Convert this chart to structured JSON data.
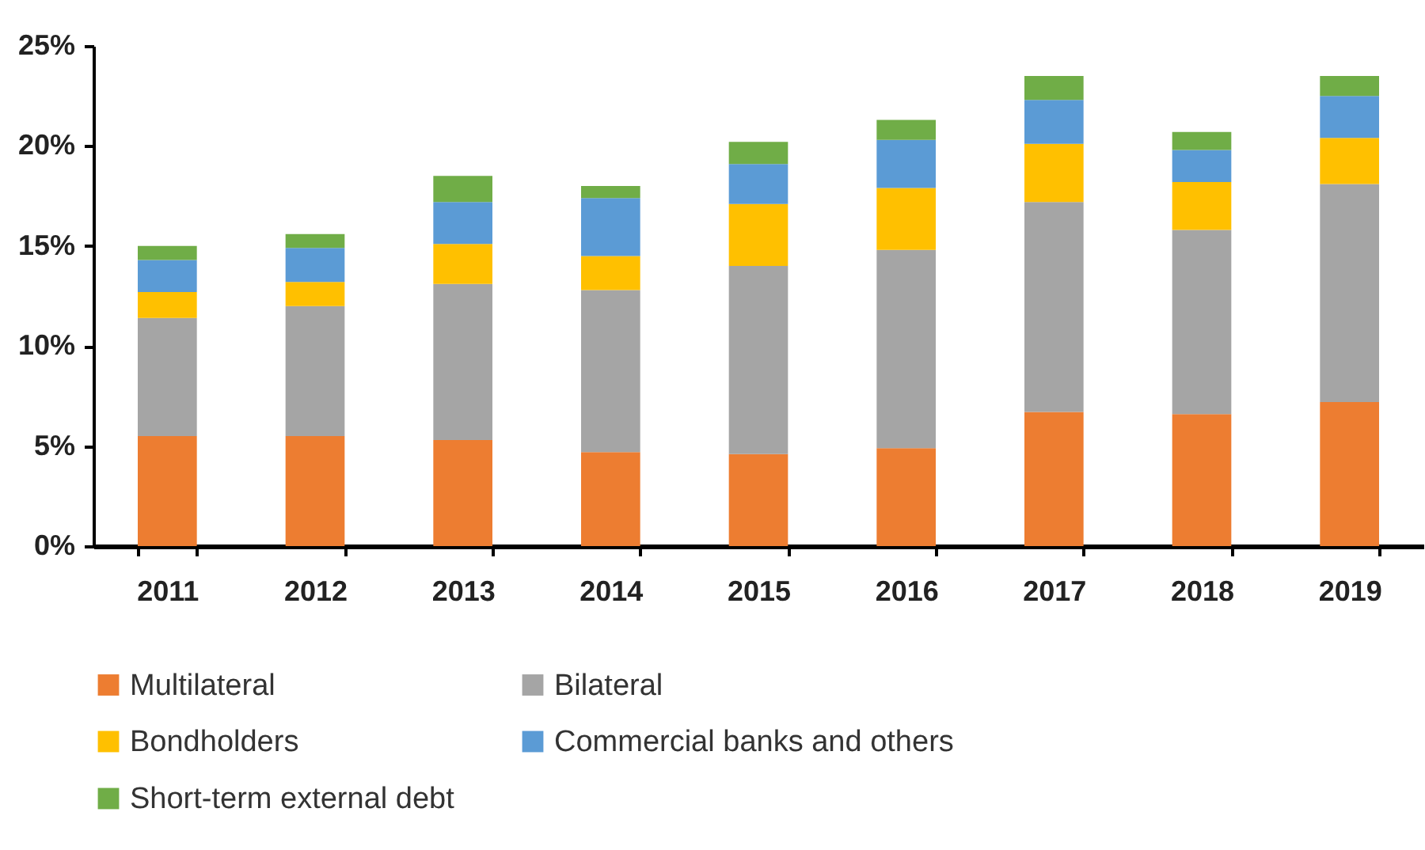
{
  "chart_data": {
    "type": "bar",
    "stacked": true,
    "categories": [
      "2011",
      "2012",
      "2013",
      "2014",
      "2015",
      "2016",
      "2017",
      "2018",
      "2019"
    ],
    "series": [
      {
        "name": "Multilateral",
        "color": "#ed7d31",
        "values": [
          5.5,
          5.5,
          5.3,
          4.7,
          4.6,
          4.9,
          6.7,
          6.6,
          7.2
        ]
      },
      {
        "name": "Bilateral",
        "color": "#a5a5a5",
        "values": [
          5.9,
          6.5,
          7.8,
          8.1,
          9.4,
          9.9,
          10.5,
          9.2,
          10.9
        ]
      },
      {
        "name": "Bondholders",
        "color": "#ffc000",
        "values": [
          1.3,
          1.2,
          2.0,
          1.7,
          3.1,
          3.1,
          2.9,
          2.4,
          2.3
        ]
      },
      {
        "name": "Commercial banks and others",
        "color": "#5b9bd5",
        "values": [
          1.6,
          1.7,
          2.1,
          2.9,
          2.0,
          2.4,
          2.2,
          1.6,
          2.1
        ]
      },
      {
        "name": "Short-term external debt",
        "color": "#70ad47",
        "values": [
          0.7,
          0.7,
          1.3,
          0.6,
          1.1,
          1.0,
          1.2,
          0.9,
          1.0
        ]
      }
    ],
    "ylim": [
      0,
      25
    ],
    "yticks": [
      {
        "value": 0,
        "label": "0%"
      },
      {
        "value": 5,
        "label": "5%"
      },
      {
        "value": 10,
        "label": "10%"
      },
      {
        "value": 15,
        "label": "15%"
      },
      {
        "value": 20,
        "label": "20%"
      },
      {
        "value": 25,
        "label": "25%"
      }
    ],
    "grid": false,
    "legend": "bottom"
  }
}
